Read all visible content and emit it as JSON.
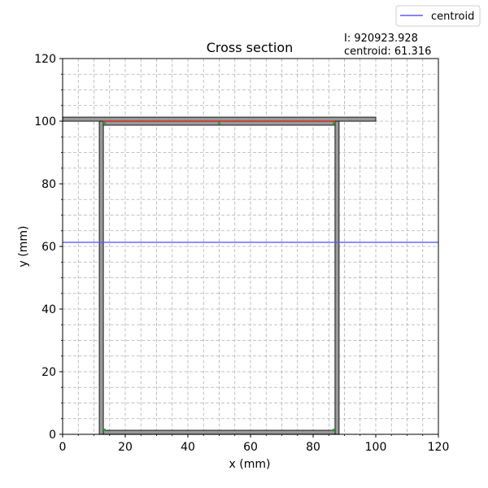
{
  "chart_data": {
    "type": "cross-section",
    "title": "Cross section",
    "xlabel": "x (mm)",
    "ylabel": "y (mm)",
    "xlim": [
      0,
      120
    ],
    "ylim": [
      0,
      120
    ],
    "x_ticks": [
      0,
      20,
      40,
      60,
      80,
      100,
      120
    ],
    "y_ticks": [
      0,
      20,
      40,
      60,
      80,
      100,
      120
    ],
    "minor_step": 5,
    "grid": true,
    "legend": {
      "position": "top-right",
      "entries": [
        {
          "label": "centroid",
          "color": "#5b5bff"
        }
      ]
    },
    "info": {
      "moment_of_inertia": "I: 920923.928",
      "centroid_text": "centroid: 61.316"
    },
    "centroid_y": 61.316,
    "members": [
      {
        "name": "top flange",
        "x": [
          0,
          100
        ],
        "y": [
          100,
          101.27
        ]
      },
      {
        "name": "left web",
        "x": [
          11.73,
          13
        ],
        "y": [
          0,
          100
        ]
      },
      {
        "name": "right web",
        "x": [
          87,
          88.27
        ],
        "y": [
          0,
          100
        ]
      },
      {
        "name": "bottom plate",
        "x": [
          13,
          87
        ],
        "y": [
          0,
          1.27
        ]
      },
      {
        "name": "top inner plate",
        "x": [
          13,
          87
        ],
        "y": [
          98.73,
          100
        ]
      }
    ],
    "glue_line": {
      "y": 100,
      "x": [
        13,
        87
      ],
      "color": "#e03030"
    },
    "glue_points": [
      [
        13.4,
        99.4
      ],
      [
        50,
        99.4
      ],
      [
        86.6,
        99.4
      ],
      [
        13.4,
        1.4
      ],
      [
        86.6,
        1.4
      ]
    ],
    "colors": {
      "member_fill": "#9a9a9a",
      "member_edge": "#333333",
      "centroid": "#5b5bff",
      "glue_point": "#2ca02c",
      "grid": "#b0b0b0"
    }
  }
}
